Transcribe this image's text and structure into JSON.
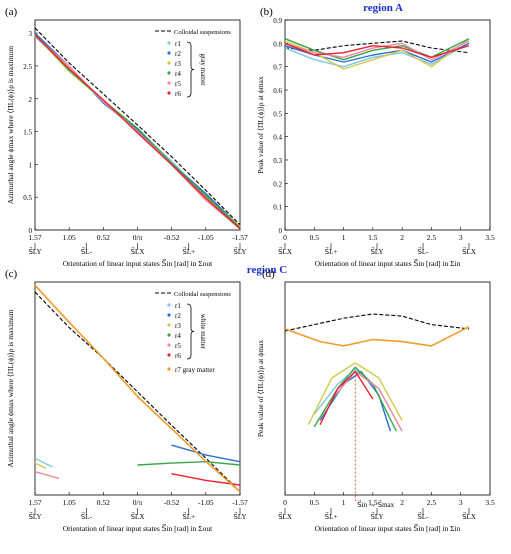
{
  "header_top": "region A",
  "header_mid": "region C",
  "panels": {
    "a": {
      "label": "(a)",
      "ylabel": "Azimuthal angle ϕmax where ⟨ΠL(ϕ)⟩ρ is maximum",
      "xlabel": "Orientation of linear input states  S⃗in [rad] in Σout",
      "xticks": [
        "1.57",
        "1.05",
        "0.52",
        "0/π",
        "-0.52",
        "-1.05",
        "-1.57"
      ],
      "state_ticks": [
        "S⃗LY",
        "S⃗L-",
        "S⃗LX",
        "S⃗L+",
        "S⃗LY"
      ],
      "yticks": [
        "0",
        "0.5",
        "1",
        "1.5",
        "2",
        "2.5",
        "3"
      ],
      "legend_title": "Colloidal suspensions",
      "legend_items": [
        "r1",
        "r2",
        "r3",
        "r4",
        "r5",
        "r6"
      ],
      "brace_label": "gray matter"
    },
    "b": {
      "label": "(b)",
      "ylabel": "Peak value of ⟨ΠL(ϕ)⟩ρ at ϕmax",
      "xlabel": "Orientation of linear input states  S⃗in [rad] in Σin",
      "xticks": [
        "0",
        "0.5",
        "1",
        "1.5",
        "2",
        "2.5",
        "3",
        "3.5"
      ],
      "state_ticks": [
        "S⃗LX",
        "S⃗L+",
        "S⃗LY",
        "S⃗L-",
        "S⃗LX"
      ],
      "yticks": [
        "0",
        "0.1",
        "0.2",
        "0.3",
        "0.4",
        "0.5",
        "0.6",
        "0.7",
        "0.8",
        "0.9"
      ]
    },
    "c": {
      "label": "(c)",
      "ylabel": "Azimuthal angle ϕmax where ⟨ΠL(ϕ)⟩ρ is maximum",
      "xlabel": "Orientation of linear input states  S⃗in [rad] in Σout",
      "xticks": [
        "1.57",
        "1.05",
        "0.52",
        "0/π",
        "-0.52",
        "-1.05",
        "-1.57"
      ],
      "state_ticks": [
        "S⃗LY",
        "S⃗L-",
        "S⃗LX",
        "S⃗L+",
        "S⃗LY"
      ],
      "legend_title": "Colloidal suspensions",
      "legend_items": [
        "r1",
        "r2",
        "r3",
        "r4",
        "r5",
        "r6"
      ],
      "brace_label": "white matter",
      "extra_legend": "r7  gray matter"
    },
    "d": {
      "label": "(d)",
      "ylabel": "Peak value of ⟨ΠL(ϕ)⟩ρ at ϕmax",
      "xlabel": "Orientation of linear input states  S⃗in [rad] in Σin",
      "xticks": [
        "0",
        "0.5",
        "1",
        "1.5",
        "2",
        "2.5",
        "3",
        "3.5"
      ],
      "state_ticks": [
        "S⃗LX",
        "S⃗L+",
        "S⃗LY",
        "S⃗L-",
        "S⃗LX"
      ],
      "annotation": "S⃗in → S⃗max"
    }
  },
  "colors": {
    "r1": "#7ec8e3",
    "r2": "#2a6fd6",
    "r3": "#d3c94a",
    "r4": "#3aa64b",
    "r5": "#f08aa0",
    "r6": "#e8232f",
    "r7": "#f39a2b",
    "colloidal": "#000000"
  },
  "chart_data": [
    {
      "panel": "a",
      "type": "line",
      "xlim": [
        1.57,
        -1.57
      ],
      "ylim": [
        0,
        3.2
      ],
      "series": [
        {
          "name": "Colloidal suspensions",
          "x": [
            1.57,
            1.05,
            0.52,
            0.0,
            -0.52,
            -1.05,
            -1.57
          ],
          "y": [
            3.08,
            2.55,
            2.07,
            1.6,
            1.12,
            0.6,
            0.08
          ]
        },
        {
          "name": "r1",
          "x": [
            1.57,
            1.05,
            0.52,
            0.0,
            -0.52,
            -1.05,
            -1.57
          ],
          "y": [
            2.95,
            2.45,
            1.95,
            1.52,
            1.05,
            0.5,
            0.02
          ]
        },
        {
          "name": "r2",
          "x": [
            1.57,
            1.05,
            0.52,
            0.0,
            -0.52,
            -1.05,
            -1.57
          ],
          "y": [
            3.0,
            2.5,
            1.93,
            1.53,
            1.02,
            0.55,
            0.05
          ]
        },
        {
          "name": "r3",
          "x": [
            1.57,
            1.05,
            0.52,
            0.0,
            -0.52,
            -1.05,
            -1.57
          ],
          "y": [
            2.97,
            2.42,
            1.97,
            1.5,
            1.0,
            0.5,
            0.06
          ]
        },
        {
          "name": "r4",
          "x": [
            1.57,
            1.05,
            0.52,
            0.0,
            -0.52,
            -1.05,
            -1.57
          ],
          "y": [
            2.98,
            2.44,
            1.97,
            1.55,
            1.02,
            0.52,
            0.04
          ]
        },
        {
          "name": "r5",
          "x": [
            1.57,
            1.05,
            0.52,
            0.0,
            -0.52,
            -1.05,
            -1.57
          ],
          "y": [
            2.96,
            2.5,
            1.95,
            1.5,
            1.0,
            0.45,
            0.02
          ]
        },
        {
          "name": "r6",
          "x": [
            1.57,
            1.05,
            0.52,
            0.0,
            -0.52,
            -1.05,
            -1.57
          ],
          "y": [
            2.97,
            2.46,
            1.98,
            1.48,
            1.0,
            0.48,
            0.02
          ]
        }
      ]
    },
    {
      "panel": "b",
      "type": "line",
      "xlim": [
        0,
        3.5
      ],
      "ylim": [
        0,
        0.9
      ],
      "series": [
        {
          "name": "Colloidal suspensions",
          "x": [
            0,
            0.5,
            1,
            1.5,
            2,
            2.5,
            3.14
          ],
          "y": [
            0.78,
            0.77,
            0.79,
            0.8,
            0.81,
            0.78,
            0.76
          ]
        },
        {
          "name": "r1",
          "x": [
            0,
            0.5,
            1,
            1.5,
            2,
            2.5,
            3.14
          ],
          "y": [
            0.78,
            0.73,
            0.7,
            0.74,
            0.76,
            0.71,
            0.8
          ]
        },
        {
          "name": "r2",
          "x": [
            0,
            0.5,
            1,
            1.5,
            2,
            2.5,
            3.14
          ],
          "y": [
            0.79,
            0.75,
            0.72,
            0.75,
            0.77,
            0.72,
            0.8
          ]
        },
        {
          "name": "r3",
          "x": [
            0,
            0.5,
            1,
            1.5,
            2,
            2.5,
            3.14
          ],
          "y": [
            0.81,
            0.76,
            0.69,
            0.73,
            0.77,
            0.7,
            0.82
          ]
        },
        {
          "name": "r4",
          "x": [
            0,
            0.5,
            1,
            1.5,
            2,
            2.5,
            3.14
          ],
          "y": [
            0.82,
            0.77,
            0.73,
            0.77,
            0.79,
            0.74,
            0.82
          ]
        },
        {
          "name": "r5",
          "x": [
            0,
            0.5,
            1,
            1.5,
            2,
            2.5,
            3.14
          ],
          "y": [
            0.8,
            0.76,
            0.74,
            0.78,
            0.8,
            0.73,
            0.81
          ]
        },
        {
          "name": "r6",
          "x": [
            0,
            0.5,
            1,
            1.5,
            2,
            2.5,
            3.14
          ],
          "y": [
            0.8,
            0.75,
            0.76,
            0.79,
            0.78,
            0.74,
            0.79
          ]
        }
      ]
    },
    {
      "panel": "c",
      "type": "line",
      "xlim": [
        1.57,
        -1.57
      ],
      "ylim": [
        0,
        3.2
      ],
      "series": [
        {
          "name": "Colloidal suspensions",
          "x": [
            1.57,
            1.05,
            0.52,
            0.0,
            -0.52,
            -1.05,
            -1.57
          ],
          "y": [
            3.05,
            2.52,
            2.05,
            1.55,
            1.05,
            0.55,
            0.05
          ]
        },
        {
          "name": "r1",
          "x": [
            1.57,
            1.3
          ],
          "y": [
            0.55,
            0.42
          ]
        },
        {
          "name": "r2",
          "x": [
            -0.52,
            -1.05,
            -1.57
          ],
          "y": [
            0.75,
            0.6,
            0.5
          ]
        },
        {
          "name": "r3",
          "x": [
            1.57,
            1.4
          ],
          "y": [
            0.48,
            0.4
          ]
        },
        {
          "name": "r4",
          "x": [
            0.0,
            -0.52,
            -1.05,
            -1.57
          ],
          "y": [
            0.45,
            0.48,
            0.5,
            0.45
          ]
        },
        {
          "name": "r5",
          "x": [
            1.57,
            1.2
          ],
          "y": [
            0.35,
            0.25
          ]
        },
        {
          "name": "r6",
          "x": [
            -0.52,
            -1.05,
            -1.57
          ],
          "y": [
            0.32,
            0.22,
            0.15
          ]
        },
        {
          "name": "r7",
          "x": [
            1.57,
            1.05,
            0.52,
            0.0,
            -0.52,
            -1.05,
            -1.57
          ],
          "y": [
            3.15,
            2.6,
            2.05,
            1.48,
            1.0,
            0.5,
            0.05
          ]
        }
      ]
    },
    {
      "panel": "d",
      "type": "line",
      "xlim": [
        0,
        3.5
      ],
      "ylim": [
        0,
        1.0
      ],
      "series": [
        {
          "name": "Colloidal suspensions",
          "x": [
            0,
            0.5,
            1,
            1.5,
            2,
            2.5,
            3.14
          ],
          "y": [
            0.77,
            0.8,
            0.83,
            0.85,
            0.84,
            0.8,
            0.78
          ]
        },
        {
          "name": "r1",
          "x": [
            0.5,
            0.9,
            1.2,
            1.6,
            2.0
          ],
          "y": [
            0.38,
            0.52,
            0.59,
            0.5,
            0.3
          ]
        },
        {
          "name": "r2",
          "x": [
            0.6,
            1.0,
            1.3,
            1.6,
            1.8
          ],
          "y": [
            0.35,
            0.52,
            0.58,
            0.47,
            0.3
          ]
        },
        {
          "name": "r3",
          "x": [
            0.4,
            0.8,
            1.2,
            1.6,
            2.0
          ],
          "y": [
            0.33,
            0.55,
            0.62,
            0.55,
            0.35
          ]
        },
        {
          "name": "r4",
          "x": [
            0.5,
            0.9,
            1.2,
            1.5,
            1.9
          ],
          "y": [
            0.32,
            0.5,
            0.6,
            0.52,
            0.3
          ]
        },
        {
          "name": "r5",
          "x": [
            0.8,
            1.2,
            1.6,
            2.0
          ],
          "y": [
            0.45,
            0.58,
            0.5,
            0.3
          ]
        },
        {
          "name": "r6",
          "x": [
            0.6,
            0.9,
            1.2,
            1.5
          ],
          "y": [
            0.33,
            0.5,
            0.58,
            0.45
          ]
        },
        {
          "name": "r7",
          "x": [
            0,
            0.6,
            1.0,
            1.5,
            2.0,
            2.5,
            3.14
          ],
          "y": [
            0.78,
            0.72,
            0.7,
            0.73,
            0.72,
            0.7,
            0.79
          ]
        }
      ]
    }
  ]
}
